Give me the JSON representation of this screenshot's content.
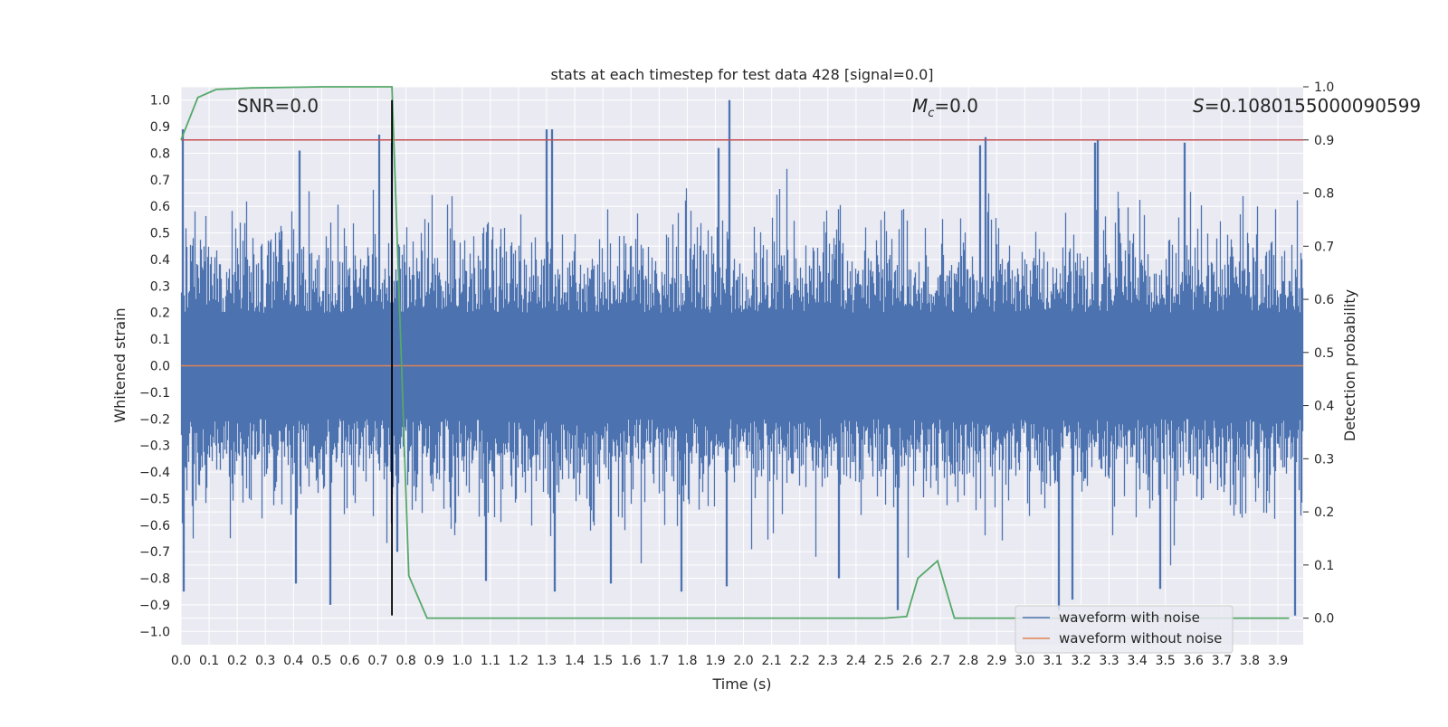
{
  "chart_data": {
    "type": "line",
    "title": "stats at each timestep for test data 428 [signal=0.0]",
    "xlabel": "Time (s)",
    "ylabel": "Whitened strain",
    "y2label": "Detection probability",
    "xlim": [
      0.0,
      3.99
    ],
    "ylim": [
      -1.05,
      1.05
    ],
    "y2lim": [
      -0.05,
      1.0
    ],
    "xticks": [
      0.0,
      0.1,
      0.2,
      0.3,
      0.4,
      0.5,
      0.6,
      0.7,
      0.8,
      0.9,
      1.0,
      1.1,
      1.2,
      1.3,
      1.4,
      1.5,
      1.6,
      1.7,
      1.8,
      1.9,
      2.0,
      2.1,
      2.2,
      2.3,
      2.4,
      2.5,
      2.6,
      2.7,
      2.8,
      2.9,
      3.0,
      3.1,
      3.2,
      3.3,
      3.4,
      3.5,
      3.6,
      3.7,
      3.8,
      3.9
    ],
    "xtick_labels": [
      "0.0",
      "0.1",
      "0.2",
      "0.3",
      "0.4",
      "0.5",
      "0.6",
      "0.7",
      "0.8",
      "0.9",
      "1.0",
      "1.1",
      "1.2",
      "1.3",
      "1.4",
      "1.5",
      "1.6",
      "1.7",
      "1.8",
      "1.9",
      "2.0",
      "2.1",
      "2.2",
      "2.3",
      "2.4",
      "2.5",
      "2.6",
      "2.7",
      "2.8",
      "2.9",
      "3.0",
      "3.1",
      "3.2",
      "3.3",
      "3.4",
      "3.5",
      "3.6",
      "3.7",
      "3.8",
      "3.9"
    ],
    "yticks": [
      1.0,
      0.9,
      0.8,
      0.7,
      0.6,
      0.5,
      0.4,
      0.3,
      0.2,
      0.1,
      0.0,
      -0.1,
      -0.2,
      -0.3,
      -0.4,
      -0.5,
      -0.6,
      -0.7,
      -0.8,
      -0.9,
      -1.0
    ],
    "ytick_labels": [
      "1.0",
      "0.9",
      "0.8",
      "0.7",
      "0.6",
      "0.5",
      "0.4",
      "0.3",
      "0.2",
      "0.1",
      "0.0",
      "−0.1",
      "−0.2",
      "−0.3",
      "−0.4",
      "−0.5",
      "−0.6",
      "−0.7",
      "−0.8",
      "−0.9",
      "−1.0"
    ],
    "y2ticks": [
      1.0,
      0.9,
      0.8,
      0.7,
      0.6,
      0.5,
      0.4,
      0.3,
      0.2,
      0.1,
      0.0
    ],
    "y2tick_labels": [
      "1.0",
      "0.9",
      "0.8",
      "0.7",
      "0.6",
      "0.5",
      "0.4",
      "0.3",
      "0.2",
      "0.1",
      "0.0"
    ],
    "grid": true,
    "legend_position": "bottom-right",
    "annotations": {
      "snr": "SNR=0.0",
      "mc_symbol": "M",
      "mc_sub": "c",
      "mc_value": "=0.0",
      "s_symbol": "S",
      "s_value": "=0.1080155000090599"
    },
    "noise": {
      "name": "waveform with noise",
      "color": "#4c72b0",
      "duration_s": 3.99,
      "typical_amplitude": 0.45,
      "peaks": [
        {
          "t": 0.005,
          "v": 0.89
        },
        {
          "t": 0.01,
          "v": -0.85
        },
        {
          "t": 0.42,
          "v": 0.81
        },
        {
          "t": 0.41,
          "v": -0.82
        },
        {
          "t": 0.53,
          "v": -0.9
        },
        {
          "t": 0.705,
          "v": 0.87
        },
        {
          "t": 0.75,
          "v": 0.84
        },
        {
          "t": 0.77,
          "v": -0.7
        },
        {
          "t": 1.085,
          "v": -0.81
        },
        {
          "t": 1.3,
          "v": 0.89
        },
        {
          "t": 1.32,
          "v": 0.89
        },
        {
          "t": 1.33,
          "v": -0.85
        },
        {
          "t": 1.53,
          "v": -0.82
        },
        {
          "t": 1.78,
          "v": -0.85
        },
        {
          "t": 1.91,
          "v": 0.82
        },
        {
          "t": 1.95,
          "v": 1.0
        },
        {
          "t": 1.94,
          "v": -0.83
        },
        {
          "t": 2.34,
          "v": -0.8
        },
        {
          "t": 2.55,
          "v": -0.92
        },
        {
          "t": 2.84,
          "v": 0.83
        },
        {
          "t": 2.86,
          "v": 0.86
        },
        {
          "t": 3.12,
          "v": -0.92
        },
        {
          "t": 3.17,
          "v": -0.88
        },
        {
          "t": 3.25,
          "v": 0.84
        },
        {
          "t": 3.26,
          "v": 0.85
        },
        {
          "t": 3.48,
          "v": -0.84
        },
        {
          "t": 3.57,
          "v": 0.84
        },
        {
          "t": 3.96,
          "v": -0.94
        }
      ]
    },
    "clean": {
      "name": "waveform without noise",
      "color": "#dd8452",
      "value": 0.0
    },
    "detection": {
      "name": "Detection probability",
      "color": "#55a868",
      "x": [
        0.0,
        0.06,
        0.125,
        0.25,
        0.375,
        0.5,
        0.625,
        0.75,
        0.81,
        0.875,
        1.0,
        1.5,
        2.0,
        2.5,
        2.58,
        2.62,
        2.69,
        2.75,
        3.0,
        3.5,
        3.94
      ],
      "y": [
        0.9,
        0.98,
        0.995,
        0.998,
        0.999,
        1.0,
        1.0,
        1.0,
        0.08,
        0.0,
        0.0,
        0.0,
        0.0,
        0.0,
        0.003,
        0.075,
        0.108,
        0.0,
        0.0,
        0.0,
        0.0
      ]
    },
    "threshold": {
      "color": "#c44e52",
      "value": 0.9
    },
    "marker": {
      "color": "#000000",
      "x": 0.75,
      "y_range": [
        -0.94,
        1.0
      ]
    }
  }
}
